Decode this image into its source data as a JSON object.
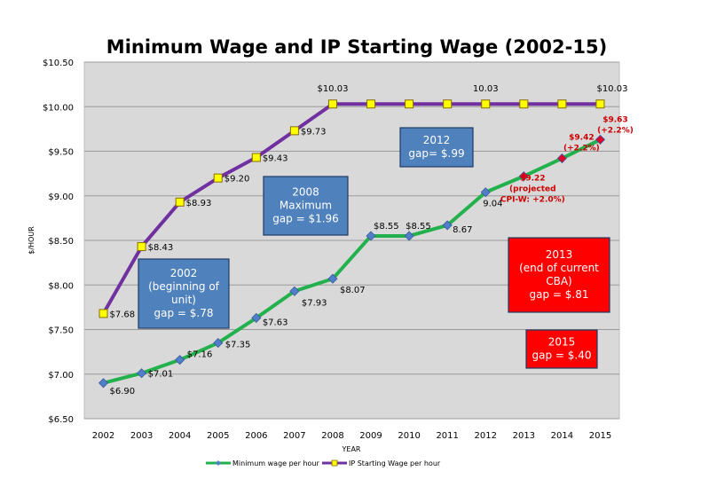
{
  "chart_data": {
    "type": "line",
    "title": "Minimum Wage and IP Starting Wage (2002-15)",
    "xlabel": "YEAR",
    "ylabel": "$/HOUR",
    "ylim": [
      6.5,
      10.5
    ],
    "yticks": [
      "$6.50",
      "$7.00",
      "$7.50",
      "$8.00",
      "$8.50",
      "$9.00",
      "$9.50",
      "$10.00",
      "$10.50"
    ],
    "categories": [
      "2002",
      "2003",
      "2004",
      "2005",
      "2006",
      "2007",
      "2008",
      "2009",
      "2010",
      "2011",
      "2012",
      "2013",
      "2014",
      "2015"
    ],
    "grid": true,
    "legend": "bottom",
    "series": [
      {
        "name": "Minimum wage per hour",
        "color": "#22b14c",
        "marker_color": "#4f7fc8",
        "values": [
          6.9,
          7.01,
          7.16,
          7.35,
          7.63,
          7.93,
          8.07,
          8.55,
          8.55,
          8.67,
          9.04,
          9.22,
          9.42,
          9.63
        ],
        "labels": [
          "$6.90",
          "$7.01",
          "$7.16",
          "$7.35",
          "$7.63",
          "$7.93",
          "$8.07",
          "$8.55",
          "$8.55",
          "8.67",
          "9.04",
          "",
          "",
          ""
        ]
      },
      {
        "name": "IP Starting Wage per hour",
        "color": "#7030a0",
        "marker_color": "#ffff00",
        "values": [
          7.68,
          8.43,
          8.93,
          9.2,
          9.43,
          9.73,
          10.03,
          10.03,
          10.03,
          10.03,
          10.03,
          10.03,
          10.03,
          10.03
        ],
        "labels": [
          "$7.68",
          "$8.43",
          "$8.93",
          "$9.20",
          "$9.43",
          "$9.73",
          "$10.03",
          "",
          "",
          "",
          "10.03",
          "",
          "",
          "$10.03"
        ]
      }
    ],
    "projected_labels": [
      [
        "$9.22",
        "(projected",
        "CPI-W: +2.0%)"
      ],
      [
        "$9.42",
        "(+2.2%)"
      ],
      [
        "$9.63",
        "(+2.2%)"
      ]
    ],
    "annotations": [
      {
        "lines": [
          "2002",
          "(beginning of",
          "unit)",
          "gap = $.78"
        ],
        "color": "#4f81bd"
      },
      {
        "lines": [
          "2008",
          "Maximum",
          "gap =  $1.96"
        ],
        "color": "#4f81bd"
      },
      {
        "lines": [
          "2012",
          "gap= $.99"
        ],
        "color": "#4f81bd"
      },
      {
        "lines": [
          "2013",
          "(end of current",
          "CBA)",
          "gap = $.81"
        ],
        "color": "#ff0000"
      },
      {
        "lines": [
          "2015",
          "gap = $.40"
        ],
        "color": "#ff0000"
      }
    ]
  }
}
